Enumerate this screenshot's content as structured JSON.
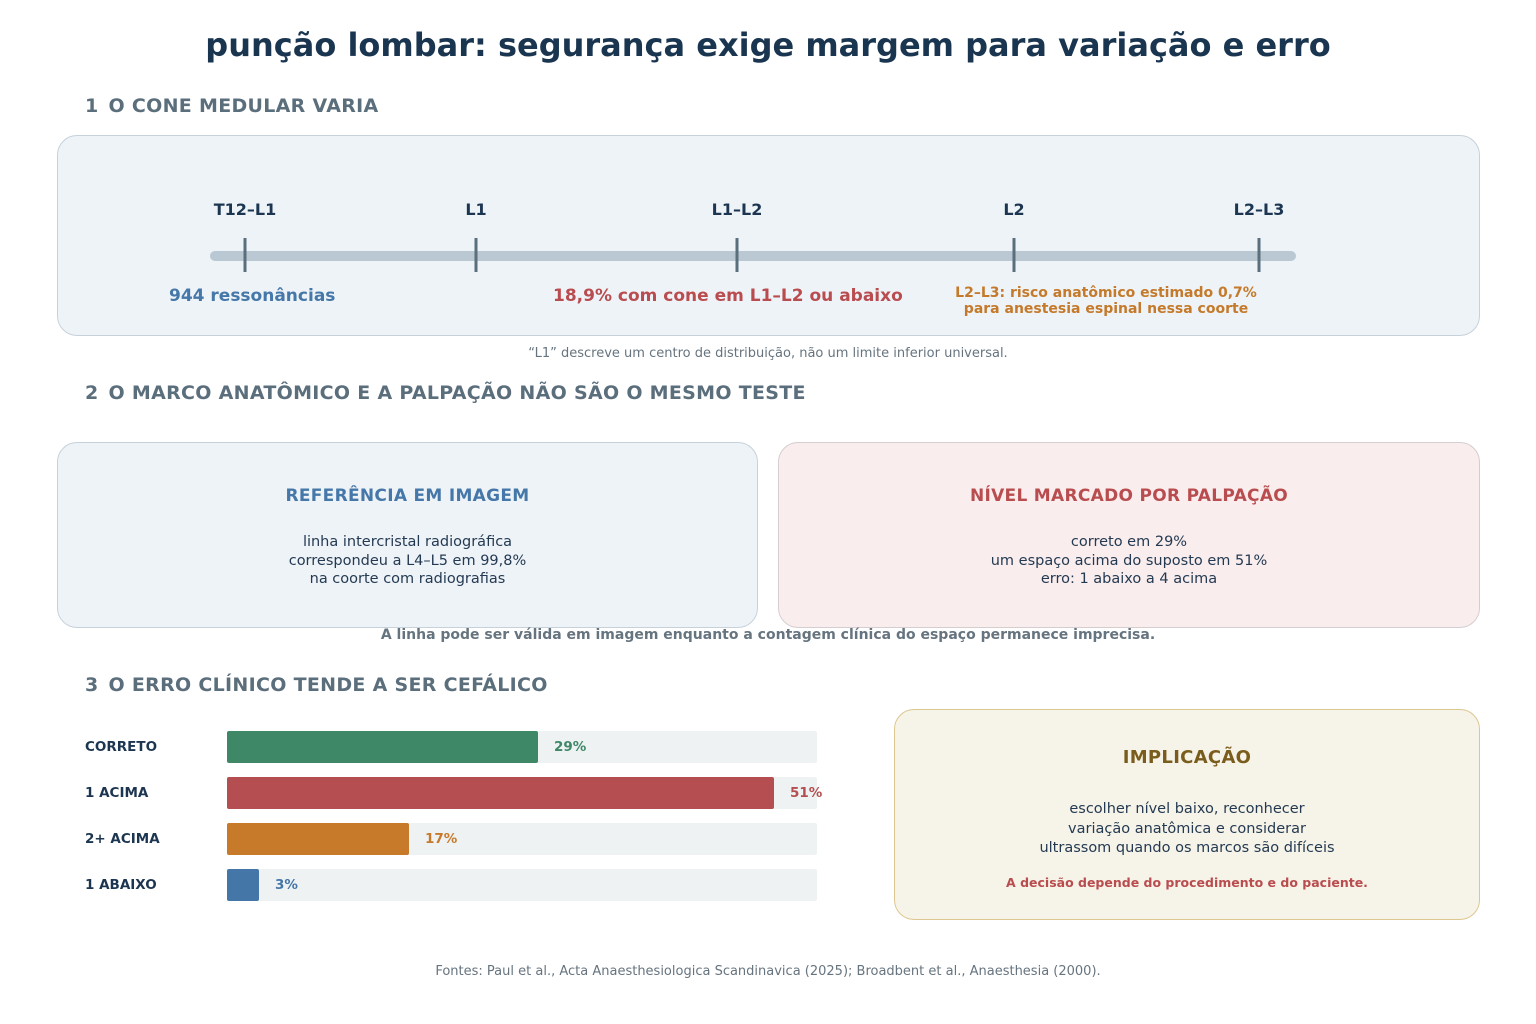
{
  "title": "punção lombar: segurança exige margem para variação e erro",
  "section1": {
    "number": "1",
    "title": "O CONE MEDULAR VARIA",
    "levels": [
      "T12–L1",
      "L1",
      "L1–L2",
      "L2",
      "L2–L3"
    ],
    "note_left": "944 ressonâncias",
    "note_center": "18,9% com cone em L1–L2 ou abaixo",
    "note_right_line1": "L2–L3: risco anatômico estimado 0,7%",
    "note_right_line2": "para anestesia espinal nessa coorte",
    "caption": "“L1” descreve um centro de distribuição, não um limite inferior universal.",
    "colors": {
      "left": "#4577a8",
      "center": "#b94c4e",
      "right": "#c47a2a"
    }
  },
  "section2": {
    "number": "2",
    "title": "O MARCO ANATÔMICO E A PALPAÇÃO NÃO SÃO O MESMO TESTE",
    "card_left": {
      "title": "REFERÊNCIA EM IMAGEM",
      "line1": "linha intercristal radiográfica",
      "line2": "correspondeu a L4–L5 em 99,8%",
      "line3": "na coorte com radiografias"
    },
    "card_right": {
      "title": "NÍVEL MARCADO POR PALPAÇÃO",
      "line1": "correto em 29%",
      "line2": "um espaço acima do suposto em 51%",
      "line3": "erro: 1 abaixo a 4 acima"
    },
    "caption": "A linha pode ser válida em imagem enquanto a contagem clínica do espaço permanece imprecisa."
  },
  "section3": {
    "number": "3",
    "title": "O ERRO CLÍNICO TENDE A SER CEFÁLICO",
    "chart_data": {
      "type": "bar",
      "orientation": "horizontal",
      "categories": [
        "CORRETO",
        "1 ACIMA",
        "2+ ACIMA",
        "1 ABAIXO"
      ],
      "values": [
        29,
        51,
        17,
        3
      ],
      "value_labels": [
        "29%",
        "51%",
        "17%",
        "3%"
      ],
      "xlim": [
        0,
        55
      ],
      "colors": [
        "#3e8767",
        "#b44e50",
        "#c67a2a",
        "#4576a8"
      ]
    },
    "implication": {
      "title": "IMPLICAÇÃO",
      "line1": "escolher nível baixo, reconhecer",
      "line2": "variação anatômica e considerar",
      "line3": "ultrassom quando os marcos são difíceis",
      "note": "A decisão depende do procedimento e do paciente."
    }
  },
  "footer": "Fontes: Paul et al., Acta Anaesthesiologica Scandinavica (2025); Broadbent et al., Anaesthesia (2000)."
}
